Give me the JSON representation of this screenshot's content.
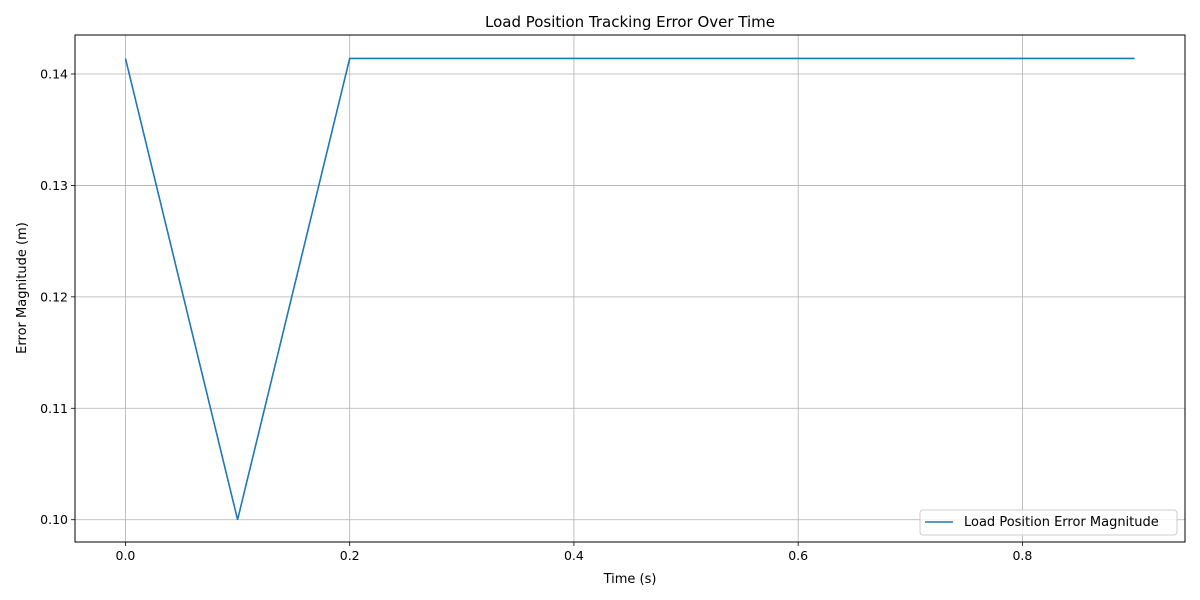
{
  "chart_data": {
    "type": "line",
    "title": "Load Position Tracking Error Over Time",
    "xlabel": "Time (s)",
    "ylabel": "Error Magnitude (m)",
    "xlim": [
      -0.045,
      0.945
    ],
    "ylim": [
      0.098,
      0.1435
    ],
    "x_ticks": [
      0.0,
      0.2,
      0.4,
      0.6,
      0.8
    ],
    "x_tick_labels": [
      "0.0",
      "0.2",
      "0.4",
      "0.6",
      "0.8"
    ],
    "y_ticks": [
      0.1,
      0.11,
      0.12,
      0.13,
      0.14
    ],
    "y_tick_labels": [
      "0.10",
      "0.11",
      "0.12",
      "0.13",
      "0.14"
    ],
    "grid": true,
    "legend_position": "bottom-right",
    "series": [
      {
        "name": "Load Position Error Magnitude",
        "color": "#1f77b4",
        "x": [
          0.0,
          0.1,
          0.2,
          0.3,
          0.4,
          0.5,
          0.6,
          0.7,
          0.8,
          0.9
        ],
        "values": [
          0.1414,
          0.1,
          0.1414,
          0.1414,
          0.1414,
          0.1414,
          0.1414,
          0.1414,
          0.1414,
          0.1414
        ]
      }
    ]
  }
}
